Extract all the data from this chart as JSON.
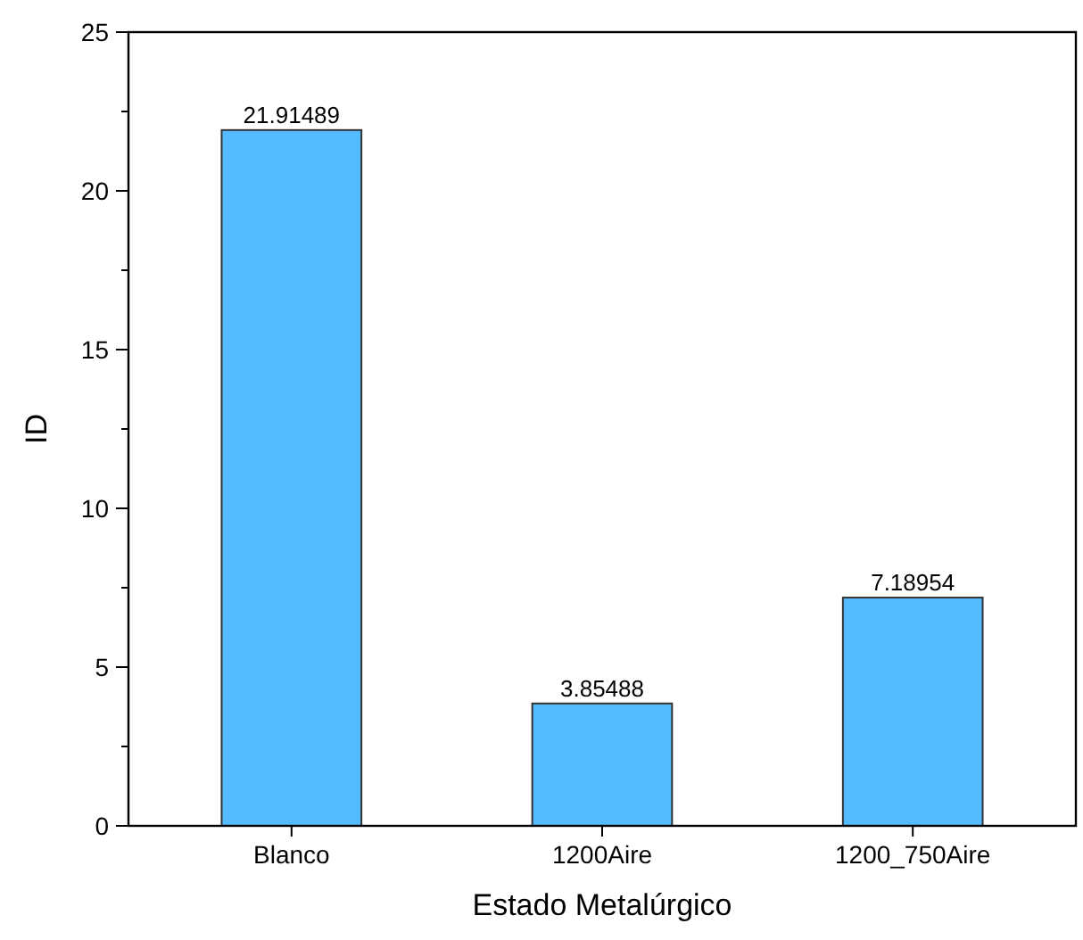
{
  "chart_data": {
    "type": "bar",
    "xlabel": "Estado Metalúrgico",
    "ylabel": "ID",
    "categories": [
      "Blanco",
      "1200Aire",
      "1200_750Aire"
    ],
    "values": [
      21.91489,
      3.85488,
      7.18954
    ],
    "color": "#55bbff",
    "data_labels": true,
    "ylim": [
      0,
      25
    ],
    "yticks": [
      0,
      {
        "value": 2.5,
        "label": null
      },
      5,
      {
        "value": 7.5,
        "label": null
      },
      10,
      {
        "value": 12.5,
        "label": null
      },
      15,
      {
        "value": 17.5,
        "label": null
      },
      20,
      {
        "value": 22.5,
        "label": null
      },
      25
    ]
  }
}
